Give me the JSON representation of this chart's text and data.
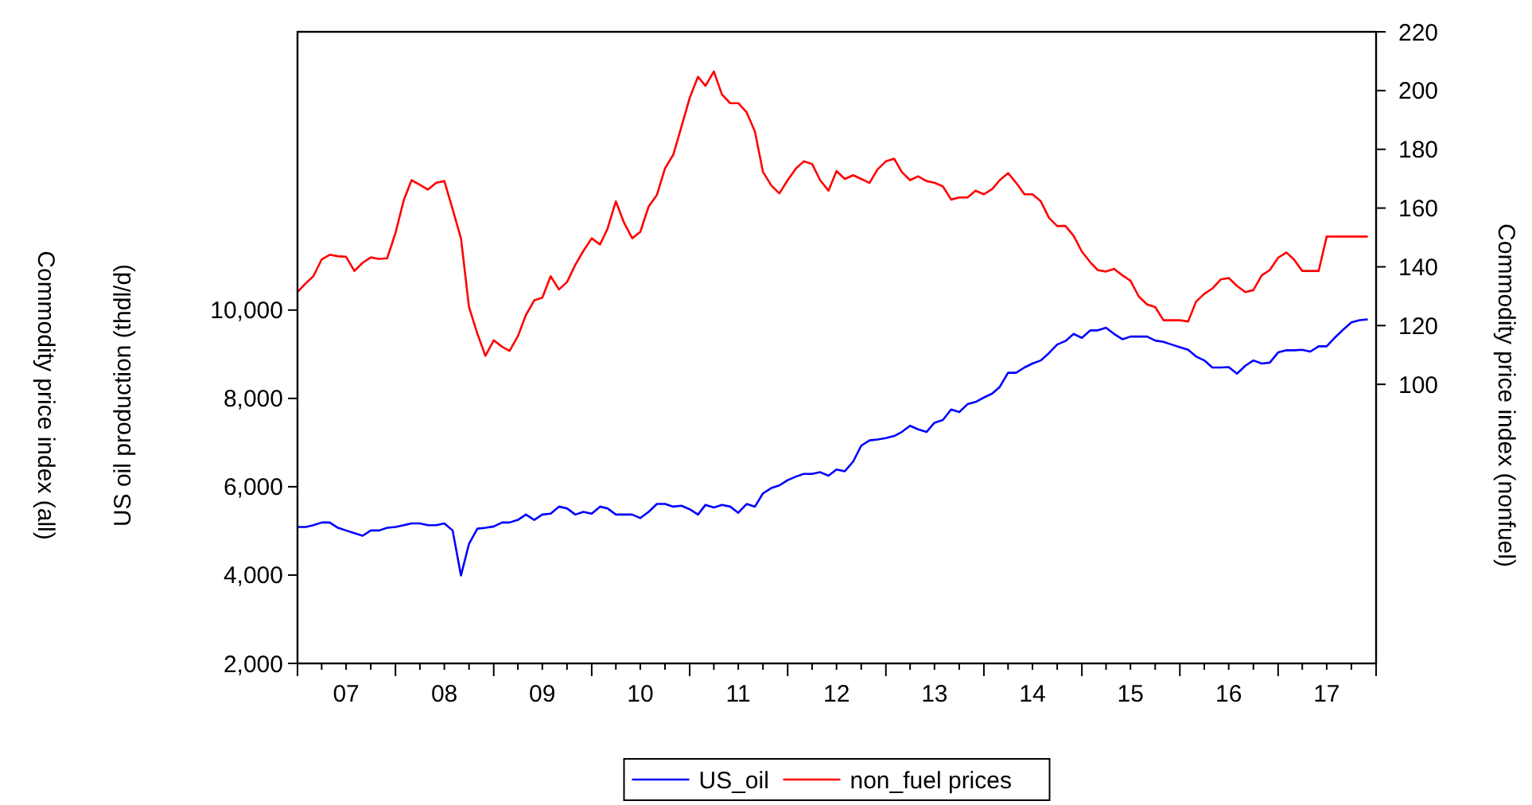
{
  "chart_data": {
    "type": "line",
    "ylabel": "US oil production (thdl/d)",
    "y2label": "Commodity price index (nonfuel)",
    "annotations": [
      "Commodity price index (all)"
    ],
    "x": [
      "2007-01",
      "2007-02",
      "2007-03",
      "2007-04",
      "2007-05",
      "2007-06",
      "2007-07",
      "2007-08",
      "2007-09",
      "2007-10",
      "2007-11",
      "2007-12",
      "2008-01",
      "2008-02",
      "2008-03",
      "2008-04",
      "2008-05",
      "2008-06",
      "2008-07",
      "2008-08",
      "2008-09",
      "2008-10",
      "2008-11",
      "2008-12",
      "2009-01",
      "2009-02",
      "2009-03",
      "2009-04",
      "2009-05",
      "2009-06",
      "2009-07",
      "2009-08",
      "2009-09",
      "2009-10",
      "2009-11",
      "2009-12",
      "2010-01",
      "2010-02",
      "2010-03",
      "2010-04",
      "2010-05",
      "2010-06",
      "2010-07",
      "2010-08",
      "2010-09",
      "2010-10",
      "2010-11",
      "2010-12",
      "2011-01",
      "2011-02",
      "2011-03",
      "2011-04",
      "2011-05",
      "2011-06",
      "2011-07",
      "2011-08",
      "2011-09",
      "2011-10",
      "2011-11",
      "2011-12",
      "2012-01",
      "2012-02",
      "2012-03",
      "2012-04",
      "2012-05",
      "2012-06",
      "2012-07",
      "2012-08",
      "2012-09",
      "2012-10",
      "2012-11",
      "2012-12",
      "2013-01",
      "2013-02",
      "2013-03",
      "2013-04",
      "2013-05",
      "2013-06",
      "2013-07",
      "2013-08",
      "2013-09",
      "2013-10",
      "2013-11",
      "2013-12",
      "2014-01",
      "2014-02",
      "2014-03",
      "2014-04",
      "2014-05",
      "2014-06",
      "2014-07",
      "2014-08",
      "2014-09",
      "2014-10",
      "2014-11",
      "2014-12",
      "2015-01",
      "2015-02",
      "2015-03",
      "2015-04",
      "2015-05",
      "2015-06",
      "2015-07",
      "2015-08",
      "2015-09",
      "2015-10",
      "2015-11",
      "2015-12",
      "2016-01",
      "2016-02",
      "2016-03",
      "2016-04",
      "2016-05",
      "2016-06",
      "2016-07",
      "2016-08",
      "2016-09",
      "2016-10",
      "2016-11",
      "2016-12",
      "2017-01",
      "2017-02",
      "2017-03",
      "2017-04",
      "2017-05",
      "2017-06",
      "2017-07",
      "2017-08",
      "2017-09",
      "2017-10",
      "2017-11",
      "2017-12"
    ],
    "series": [
      {
        "name": "US_oil",
        "color": "#0000ff",
        "values": [
          5090,
          5090,
          5130,
          5190,
          5190,
          5070,
          5010,
          4950,
          4890,
          5010,
          5010,
          5070,
          5090,
          5130,
          5170,
          5170,
          5130,
          5130,
          5170,
          5010,
          3990,
          4710,
          5050,
          5070,
          5100,
          5190,
          5190,
          5250,
          5370,
          5250,
          5370,
          5390,
          5550,
          5510,
          5370,
          5430,
          5390,
          5550,
          5510,
          5370,
          5370,
          5370,
          5290,
          5430,
          5610,
          5610,
          5550,
          5570,
          5490,
          5370,
          5590,
          5530,
          5590,
          5550,
          5410,
          5610,
          5550,
          5850,
          5970,
          6030,
          6150,
          6230,
          6290,
          6290,
          6330,
          6250,
          6390,
          6350,
          6570,
          6930,
          7050,
          7070,
          7100,
          7150,
          7240,
          7380,
          7300,
          7240,
          7450,
          7510,
          7750,
          7690,
          7870,
          7920,
          8020,
          8110,
          8260,
          8580,
          8580,
          8700,
          8790,
          8860,
          9030,
          9220,
          9300,
          9460,
          9370,
          9540,
          9540,
          9600,
          9460,
          9340,
          9400,
          9400,
          9400,
          9310,
          9280,
          9220,
          9160,
          9100,
          8950,
          8860,
          8700,
          8700,
          8710,
          8560,
          8740,
          8860,
          8790,
          8810,
          9040,
          9090,
          9090,
          9100,
          9060,
          9180,
          9180,
          9380,
          9560,
          9720,
          9770,
          9790
        ]
      },
      {
        "name": "non_fuel prices",
        "color": "#ff0000",
        "axis": "y2",
        "values": [
          131.4,
          134.4,
          136.8,
          142.5,
          144.1,
          143.6,
          143.4,
          138.6,
          141.4,
          143.2,
          142.7,
          142.9,
          151.5,
          162.7,
          169.5,
          167.9,
          166.3,
          168.6,
          169.2,
          159.6,
          149.7,
          126.3,
          117.3,
          109.7,
          115.0,
          112.8,
          111.4,
          116.4,
          123.6,
          128.6,
          129.5,
          136.8,
          132.3,
          134.8,
          140.7,
          145.4,
          149.7,
          147.6,
          153.0,
          162.3,
          155.1,
          149.7,
          151.9,
          160.5,
          164.5,
          173.5,
          178.2,
          187.6,
          197.5,
          204.7,
          201.6,
          206.5,
          198.7,
          195.7,
          195.7,
          192.6,
          186.1,
          172.3,
          167.7,
          165.0,
          169.5,
          173.5,
          175.9,
          175.0,
          169.5,
          165.9,
          172.6,
          169.9,
          171.2,
          169.9,
          168.6,
          173.2,
          175.9,
          176.8,
          172.3,
          169.5,
          170.8,
          169.2,
          168.6,
          167.4,
          162.9,
          163.6,
          163.6,
          165.9,
          164.7,
          166.5,
          169.5,
          171.9,
          168.6,
          164.7,
          164.7,
          162.3,
          156.6,
          153.9,
          153.9,
          150.6,
          145.2,
          141.6,
          138.9,
          138.4,
          139.3,
          137.1,
          135.3,
          129.9,
          127.2,
          126.3,
          121.8,
          121.8,
          121.8,
          121.4,
          128.1,
          130.8,
          132.6,
          135.7,
          136.2,
          133.5,
          131.4,
          132.1,
          137.1,
          138.9,
          143.1,
          144.9,
          142.5,
          138.6,
          138.6,
          138.6,
          150.3,
          150.3,
          150.3,
          150.3,
          150.3,
          150.3
        ]
      }
    ],
    "xlim": [
      "2007-01",
      "2018-01"
    ],
    "xticks": [
      {
        "value": "2007-01",
        "label": null
      },
      {
        "value": "2007-04",
        "label": null
      },
      {
        "value": "2007-07",
        "label": "07"
      },
      {
        "value": "2007-10",
        "label": null
      },
      {
        "value": "2008-01",
        "label": null
      },
      {
        "value": "2008-04",
        "label": null
      },
      {
        "value": "2008-07",
        "label": "08"
      },
      {
        "value": "2008-10",
        "label": null
      },
      {
        "value": "2009-01",
        "label": null
      },
      {
        "value": "2009-04",
        "label": null
      },
      {
        "value": "2009-07",
        "label": "09"
      },
      {
        "value": "2009-10",
        "label": null
      },
      {
        "value": "2010-01",
        "label": null
      },
      {
        "value": "2010-04",
        "label": null
      },
      {
        "value": "2010-07",
        "label": "10"
      },
      {
        "value": "2010-10",
        "label": null
      },
      {
        "value": "2011-01",
        "label": null
      },
      {
        "value": "2011-04",
        "label": null
      },
      {
        "value": "2011-07",
        "label": "11"
      },
      {
        "value": "2011-10",
        "label": null
      },
      {
        "value": "2012-01",
        "label": null
      },
      {
        "value": "2012-04",
        "label": null
      },
      {
        "value": "2012-07",
        "label": "12"
      },
      {
        "value": "2012-10",
        "label": null
      },
      {
        "value": "2013-01",
        "label": null
      },
      {
        "value": "2013-04",
        "label": null
      },
      {
        "value": "2013-07",
        "label": "13"
      },
      {
        "value": "2013-10",
        "label": null
      },
      {
        "value": "2014-01",
        "label": null
      },
      {
        "value": "2014-04",
        "label": null
      },
      {
        "value": "2014-07",
        "label": "14"
      },
      {
        "value": "2014-10",
        "label": null
      },
      {
        "value": "2015-01",
        "label": null
      },
      {
        "value": "2015-04",
        "label": null
      },
      {
        "value": "2015-07",
        "label": "15"
      },
      {
        "value": "2015-10",
        "label": null
      },
      {
        "value": "2016-01",
        "label": null
      },
      {
        "value": "2016-04",
        "label": null
      },
      {
        "value": "2016-07",
        "label": "16"
      },
      {
        "value": "2016-10",
        "label": null
      },
      {
        "value": "2017-01",
        "label": null
      },
      {
        "value": "2017-04",
        "label": null
      },
      {
        "value": "2017-07",
        "label": "17"
      },
      {
        "value": "2017-10",
        "label": null
      },
      {
        "value": "2018-01",
        "label": null
      }
    ],
    "ylim": [
      2000,
      16300
    ],
    "yticks": [
      {
        "value": 2000,
        "label": "2,000"
      },
      {
        "value": 4000,
        "label": "4,000"
      },
      {
        "value": 6000,
        "label": "6,000"
      },
      {
        "value": 8000,
        "label": "8,000"
      },
      {
        "value": 10000,
        "label": "10,000"
      }
    ],
    "y2lim": [
      5,
      220
    ],
    "y2ticks": [
      100,
      120,
      140,
      160,
      180,
      200,
      220
    ],
    "grid": false,
    "legend": "bottom",
    "line_style": "solid",
    "marker": "none"
  }
}
